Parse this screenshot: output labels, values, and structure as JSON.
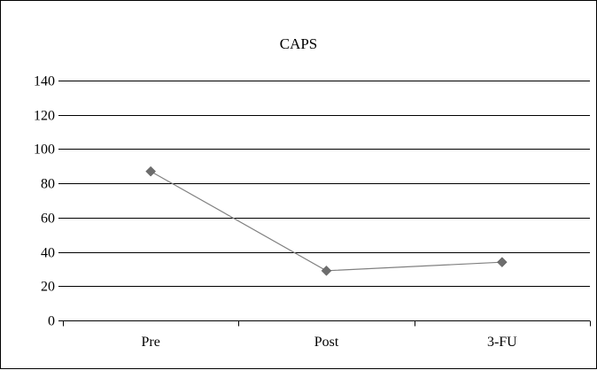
{
  "chart_data": {
    "type": "line",
    "title": "CAPS",
    "xlabel": "",
    "ylabel": "",
    "categories": [
      "Pre",
      "Post",
      "3-FU"
    ],
    "series": [
      {
        "values": [
          87,
          29,
          34
        ]
      }
    ],
    "ylim": [
      0,
      140
    ],
    "yticks": [
      0,
      20,
      40,
      60,
      80,
      100,
      120,
      140
    ],
    "grid": true,
    "legend": "none",
    "colors": {
      "line": "#808080",
      "marker": "#6d6d6d"
    },
    "marker": "diamond"
  }
}
